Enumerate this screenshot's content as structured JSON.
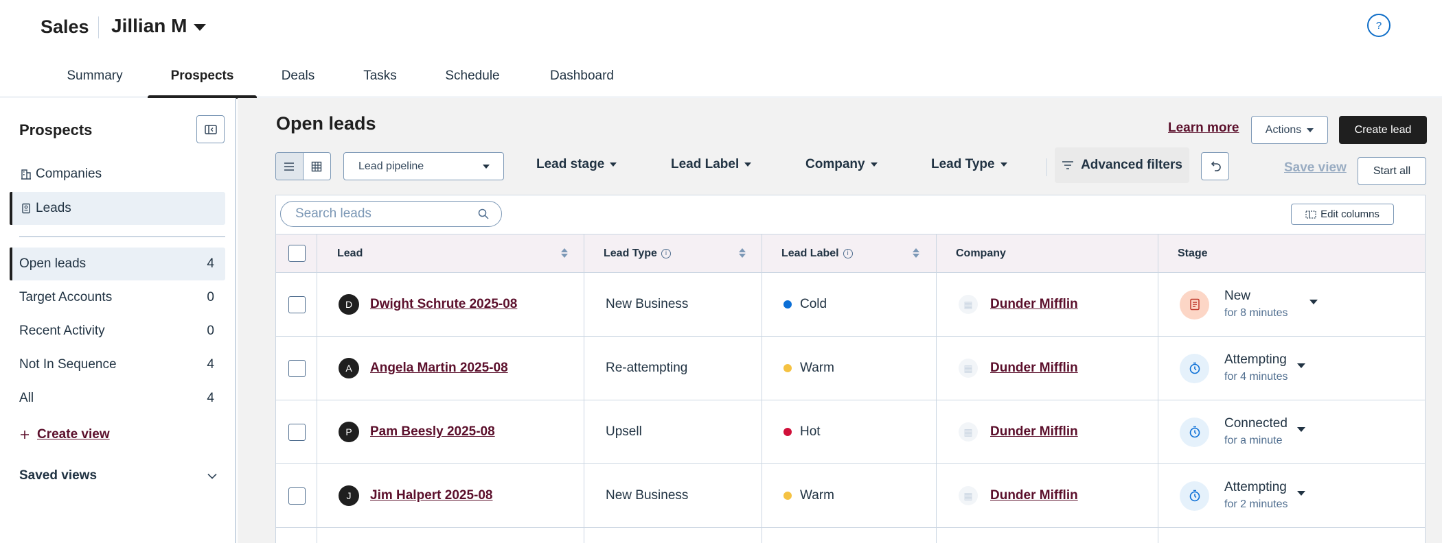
{
  "header": {
    "app_title": "Sales",
    "user_name": "Jillian M",
    "help_icon": "?"
  },
  "tabs": [
    {
      "label": "Summary"
    },
    {
      "label": "Prospects"
    },
    {
      "label": "Deals"
    },
    {
      "label": "Tasks"
    },
    {
      "label": "Schedule"
    },
    {
      "label": "Dashboard"
    }
  ],
  "active_tab": "Prospects",
  "sidebar": {
    "title": "Prospects",
    "nav": [
      {
        "label": "Companies",
        "icon": "building-icon"
      },
      {
        "label": "Leads",
        "icon": "leads-icon"
      }
    ],
    "views": [
      {
        "label": "Open leads",
        "count": "4"
      },
      {
        "label": "Target Accounts",
        "count": "0"
      },
      {
        "label": "Recent Activity",
        "count": "0"
      },
      {
        "label": "Not In Sequence",
        "count": "4"
      },
      {
        "label": "All",
        "count": "4"
      }
    ],
    "create_view": "Create view",
    "saved_views": "Saved views"
  },
  "main": {
    "title": "Open leads",
    "learn_more": "Learn more",
    "actions_label": "Actions",
    "create_lead_label": "Create lead",
    "pipeline_select": "Lead pipeline",
    "filters": [
      "Lead stage",
      "Lead Label",
      "Company",
      "Lead Type"
    ],
    "advanced_filters": "Advanced filters",
    "save_view": "Save view",
    "start_all": "Start all",
    "search_placeholder": "Search leads",
    "edit_columns": "Edit columns"
  },
  "table": {
    "columns": [
      "Lead",
      "Lead Type",
      "Lead Label",
      "Company",
      "Stage"
    ],
    "rows": [
      {
        "initial": "D",
        "lead": "Dwight Schrute 2025-08",
        "type": "New Business",
        "label": "Cold",
        "label_color": "#0b6fd6",
        "company": "Dunder Mifflin",
        "stage": "New",
        "stage_time": "for 8 minutes",
        "stage_kind": "new"
      },
      {
        "initial": "A",
        "lead": "Angela Martin 2025-08",
        "type": "Re-attempting",
        "label": "Warm",
        "label_color": "#f5c242",
        "company": "Dunder Mifflin",
        "stage": "Attempting",
        "stage_time": "for 4 minutes",
        "stage_kind": "timer"
      },
      {
        "initial": "P",
        "lead": "Pam Beesly 2025-08",
        "type": "Upsell",
        "label": "Hot",
        "label_color": "#d0103a",
        "company": "Dunder Mifflin",
        "stage": "Connected",
        "stage_time": "for a minute",
        "stage_kind": "timer"
      },
      {
        "initial": "J",
        "lead": "Jim Halpert 2025-08",
        "type": "New Business",
        "label": "Warm",
        "label_color": "#f5c242",
        "company": "Dunder Mifflin",
        "stage": "Attempting",
        "stage_time": "for 2 minutes",
        "stage_kind": "timer"
      }
    ]
  },
  "colors": {
    "link": "#5b0f2b",
    "header_row": "#f5f0f4",
    "new_stage_bg": "#fcd6c6",
    "timer_stage_bg": "#e5f1fb"
  }
}
